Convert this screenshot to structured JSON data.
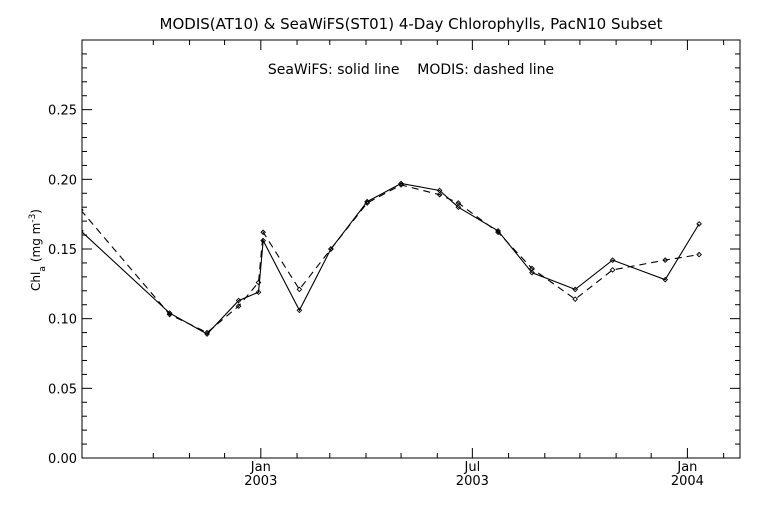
{
  "chart_data": {
    "type": "line",
    "title": "MODIS(AT10) & SeaWiFS(ST01) 4-Day Chlorophylls, PacN10 Subset",
    "annotation": "SeaWiFS: solid line    MODIS: dashed line",
    "ylabel": "Chl_a (mg m^-3)",
    "ylabel_main": "Chl",
    "ylabel_sub": "a",
    "ylabel_unit": "(mg m",
    "ylabel_exp": "-3",
    "ylabel_close": ")",
    "ylim": [
      0.0,
      0.3
    ],
    "yticks": [
      "0.00",
      "0.05",
      "0.10",
      "0.15",
      "0.20",
      "0.25"
    ],
    "xlim": [
      "2002-08-01",
      "2004-02-15"
    ],
    "xticks": [
      {
        "date": "2003-01-01",
        "label1": "Jan",
        "label2": "2003"
      },
      {
        "date": "2003-07-01",
        "label1": "Jul",
        "label2": "2003"
      },
      {
        "date": "2004-01-01",
        "label1": "Jan",
        "label2": "2004"
      }
    ],
    "minor_ticks": [
      "2002-10-01",
      "2002-11-01",
      "2002-12-01",
      "2003-02-01",
      "2003-03-01",
      "2003-04-01",
      "2003-05-01",
      "2003-06-01",
      "2003-08-01",
      "2003-09-01",
      "2003-10-01",
      "2003-11-01",
      "2003-12-01",
      "2004-02-01"
    ],
    "grid": false,
    "series": [
      {
        "name": "SeaWiFS",
        "style": "solid",
        "color": "#000000",
        "points": [
          {
            "x": "2002-07-31",
            "y": 0.163
          },
          {
            "x": "2002-10-15",
            "y": 0.104
          },
          {
            "x": "2002-11-16",
            "y": 0.089
          },
          {
            "x": "2002-12-13",
            "y": 0.113
          },
          {
            "x": "2002-12-30",
            "y": 0.119
          },
          {
            "x": "2003-01-03",
            "y": 0.156
          },
          {
            "x": "2003-02-03",
            "y": 0.106
          },
          {
            "x": "2003-03-02",
            "y": 0.15
          },
          {
            "x": "2003-04-02",
            "y": 0.184
          },
          {
            "x": "2003-05-01",
            "y": 0.197
          },
          {
            "x": "2003-06-03",
            "y": 0.192
          },
          {
            "x": "2003-06-19",
            "y": 0.18
          },
          {
            "x": "2003-07-23",
            "y": 0.163
          },
          {
            "x": "2003-08-21",
            "y": 0.133
          },
          {
            "x": "2003-09-27",
            "y": 0.121
          },
          {
            "x": "2003-10-29",
            "y": 0.142
          },
          {
            "x": "2003-12-13",
            "y": 0.128
          },
          {
            "x": "2004-01-11",
            "y": 0.168
          }
        ]
      },
      {
        "name": "MODIS",
        "style": "dashed",
        "color": "#000000",
        "points": [
          {
            "x": "2002-07-31",
            "y": 0.178
          },
          {
            "x": "2002-10-15",
            "y": 0.103
          },
          {
            "x": "2002-11-16",
            "y": 0.09
          },
          {
            "x": "2002-12-13",
            "y": 0.109
          },
          {
            "x": "2002-12-30",
            "y": 0.126
          },
          {
            "x": "2003-01-03",
            "y": 0.162
          },
          {
            "x": "2003-02-03",
            "y": 0.121
          },
          {
            "x": "2003-03-02",
            "y": 0.15
          },
          {
            "x": "2003-04-02",
            "y": 0.183
          },
          {
            "x": "2003-05-01",
            "y": 0.196
          },
          {
            "x": "2003-06-03",
            "y": 0.189
          },
          {
            "x": "2003-06-19",
            "y": 0.183
          },
          {
            "x": "2003-07-23",
            "y": 0.162
          },
          {
            "x": "2003-08-21",
            "y": 0.136
          },
          {
            "x": "2003-09-27",
            "y": 0.114
          },
          {
            "x": "2003-10-29",
            "y": 0.135
          },
          {
            "x": "2003-12-13",
            "y": 0.142
          },
          {
            "x": "2004-01-11",
            "y": 0.146
          }
        ]
      }
    ]
  }
}
